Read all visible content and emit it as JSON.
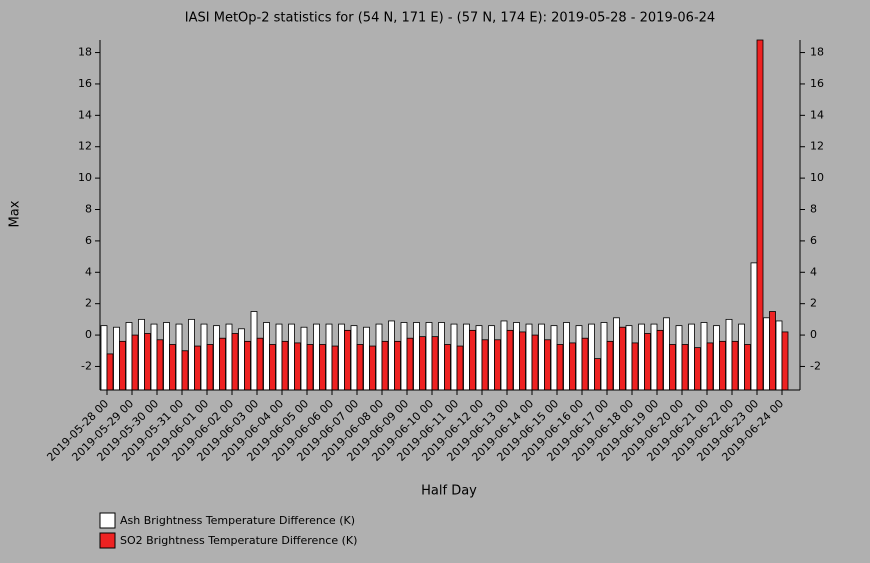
{
  "chart_data": {
    "type": "bar",
    "title": "IASI MetOp-2 statistics for (54 N, 171 E) - (57 N, 174 E): 2019-05-28 - 2019-06-24",
    "x_label": "Half Day",
    "y_label": "Max",
    "categories": [
      "2019-05-28 00",
      null,
      "2019-05-29 00",
      null,
      "2019-05-30 00",
      null,
      "2019-05-31 00",
      null,
      "2019-06-01 00",
      null,
      "2019-06-02 00",
      null,
      "2019-06-03 00",
      null,
      "2019-06-04 00",
      null,
      "2019-06-05 00",
      null,
      "2019-06-06 00",
      null,
      "2019-06-07 00",
      null,
      "2019-06-08 00",
      null,
      "2019-06-09 00",
      null,
      "2019-06-10 00",
      null,
      "2019-06-11 00",
      null,
      "2019-06-12 00",
      null,
      "2019-06-13 00",
      null,
      "2019-06-14 00",
      null,
      "2019-06-15 00",
      null,
      "2019-06-16 00",
      null,
      "2019-06-17 00",
      null,
      "2019-06-18 00",
      null,
      "2019-06-19 00",
      null,
      "2019-06-20 00",
      null,
      "2019-06-21 00",
      null,
      "2019-06-22 00",
      null,
      "2019-06-23 00",
      null,
      "2019-06-24 00"
    ],
    "series": [
      {
        "name": "Ash Brightness Temperature Difference (K)",
        "color": "#ffffff",
        "values": [
          0.6,
          0.5,
          0.8,
          1.0,
          0.7,
          0.8,
          0.7,
          1.0,
          0.7,
          0.6,
          0.7,
          0.4,
          1.5,
          0.8,
          0.7,
          0.7,
          0.5,
          0.7,
          0.7,
          0.7,
          0.6,
          0.5,
          0.7,
          0.9,
          0.8,
          0.8,
          0.8,
          0.8,
          0.7,
          0.7,
          0.6,
          0.6,
          0.9,
          0.8,
          0.7,
          0.7,
          0.6,
          0.8,
          0.6,
          0.7,
          0.8,
          1.1,
          0.6,
          0.7,
          0.7,
          1.1,
          0.6,
          0.7,
          0.8,
          0.6,
          1.0,
          0.7,
          4.6,
          1.1,
          0.9
        ]
      },
      {
        "name": "SO2 Brightness Temperature Difference (K)",
        "color": "#ee2222",
        "values": [
          -1.2,
          -0.4,
          0.0,
          0.1,
          -0.3,
          -0.6,
          -1.0,
          -0.7,
          -0.6,
          -0.2,
          0.1,
          -0.4,
          -0.2,
          -0.6,
          -0.4,
          -0.5,
          -0.6,
          -0.6,
          -0.7,
          0.3,
          -0.6,
          -0.7,
          -0.4,
          -0.4,
          -0.2,
          -0.1,
          -0.1,
          -0.6,
          -0.7,
          0.3,
          -0.3,
          -0.3,
          0.3,
          0.2,
          0.0,
          -0.3,
          -0.6,
          -0.5,
          -0.2,
          -1.5,
          -0.4,
          0.5,
          -0.5,
          0.1,
          0.3,
          -0.6,
          -0.6,
          -0.8,
          -0.5,
          -0.4,
          -0.4,
          -0.6,
          18.8,
          1.5,
          0.2
        ]
      }
    ],
    "ylim": [
      -3.5,
      18.8
    ],
    "yticks": [
      -2,
      0,
      2,
      4,
      6,
      8,
      10,
      12,
      14,
      16,
      18
    ]
  }
}
